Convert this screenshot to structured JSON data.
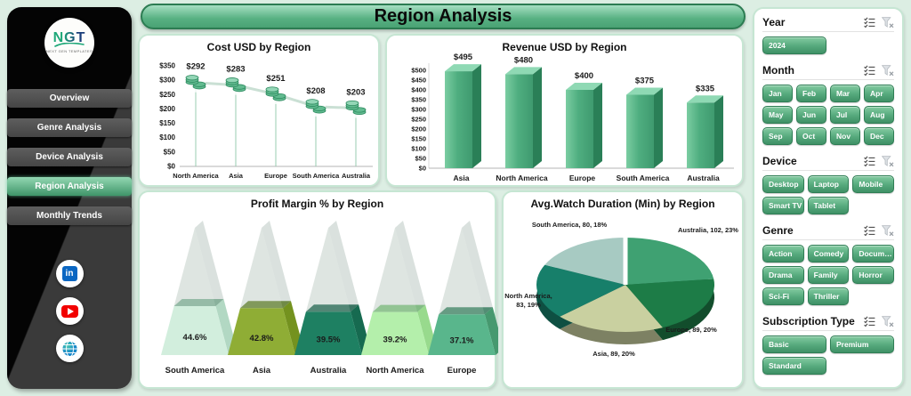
{
  "title": "Region Analysis",
  "sidebar": {
    "logo": {
      "text": "NGT",
      "caption": "NEXT GEN TEMPLATES"
    },
    "items": [
      {
        "label": "Overview",
        "active": false
      },
      {
        "label": "Genre Analysis",
        "active": false
      },
      {
        "label": "Device Analysis",
        "active": false
      },
      {
        "label": "Region Analysis",
        "active": true
      },
      {
        "label": "Monthly Trends",
        "active": false
      }
    ],
    "social": [
      "linkedin",
      "youtube",
      "website"
    ]
  },
  "slicers": {
    "header_icons": [
      "multi-select",
      "clear-filter"
    ],
    "groups": [
      {
        "name": "Year",
        "cols": 2,
        "items": [
          "2024"
        ]
      },
      {
        "name": "Month",
        "cols": 4,
        "items": [
          "Jan",
          "Feb",
          "Mar",
          "Apr",
          "May",
          "Jun",
          "Jul",
          "Aug",
          "Sep",
          "Oct",
          "Nov",
          "Dec"
        ]
      },
      {
        "name": "Device",
        "cols": 3,
        "items": [
          "Desktop",
          "Laptop",
          "Mobile",
          "Smart TV",
          "Tablet"
        ]
      },
      {
        "name": "Genre",
        "cols": 3,
        "items": [
          "Action",
          "Comedy",
          "Documen...",
          "Drama",
          "Family",
          "Horror",
          "Sci-Fi",
          "Thriller"
        ]
      },
      {
        "name": "Subscription Type",
        "cols": 2,
        "items": [
          "Basic",
          "Premium",
          "Standard"
        ]
      }
    ]
  },
  "chart_data": [
    {
      "type": "line",
      "title": "Cost USD by Region",
      "categories": [
        "North America",
        "Asia",
        "Europe",
        "South America",
        "Australia"
      ],
      "values": [
        292,
        283,
        251,
        208,
        203
      ],
      "labels": [
        "$292",
        "$283",
        "$251",
        "$208",
        "$203"
      ],
      "ylim": [
        0,
        350
      ],
      "ytick_step": 50,
      "ytick_labels": [
        "$0",
        "$50",
        "$100",
        "$150",
        "$200",
        "$250",
        "$300",
        "$350"
      ],
      "grid": false,
      "marker": "coin-stack",
      "line_color": "#c7ded2",
      "marker_color": "#62bb90"
    },
    {
      "type": "bar",
      "title": "Revenue USD by Region",
      "categories": [
        "Asia",
        "North America",
        "Europe",
        "South America",
        "Australia"
      ],
      "values": [
        495,
        480,
        400,
        375,
        335
      ],
      "labels": [
        "$495",
        "$480",
        "$400",
        "$375",
        "$335"
      ],
      "ylim": [
        0,
        500
      ],
      "ytick_step": 50,
      "ytick_labels": [
        "$0",
        "$50",
        "$100",
        "$150",
        "$200",
        "$250",
        "$300",
        "$350",
        "$400",
        "$450",
        "$500"
      ],
      "grid": false,
      "bar_front_color": "#4fae80",
      "bar_side_color": "#2a7f57",
      "bar_top_color": "#8fd9b4"
    },
    {
      "type": "pyramid",
      "title": "Profit Margin % by Region",
      "categories": [
        "South America",
        "Asia",
        "Australia",
        "North America",
        "Europe"
      ],
      "values": [
        44.6,
        42.8,
        39.5,
        39.2,
        37.1
      ],
      "labels": [
        "44.6%",
        "42.8%",
        "39.5%",
        "39.2%",
        "37.1%"
      ],
      "colors": [
        "#d2eedd",
        "#8fad35",
        "#1e8062",
        "#b4efab",
        "#59b68c"
      ],
      "top_colors": [
        "#84b79c",
        "#5f7c1b",
        "#0f5c45",
        "#7cc779",
        "#31805e"
      ],
      "side_colors": [
        "#b2d8c3",
        "#74921f",
        "#166a50",
        "#98da8d",
        "#46996f"
      ]
    },
    {
      "type": "pie",
      "title": "Avg.Watch Duration (Min) by Region",
      "legend_position": "outside-labels",
      "slices": [
        {
          "label": "Australia",
          "value": 102,
          "pct": "23%",
          "color": "#3fa172"
        },
        {
          "label": "Europe",
          "value": 89,
          "pct": "20%",
          "color": "#1d7c47"
        },
        {
          "label": "Asia",
          "value": 89,
          "pct": "20%",
          "color": "#c9d0a0"
        },
        {
          "label": "North America",
          "value": 83,
          "pct": "19%",
          "color": "#177f6a"
        },
        {
          "label": "South America",
          "value": 80,
          "pct": "18%",
          "color": "#a7cac2"
        }
      ]
    }
  ]
}
